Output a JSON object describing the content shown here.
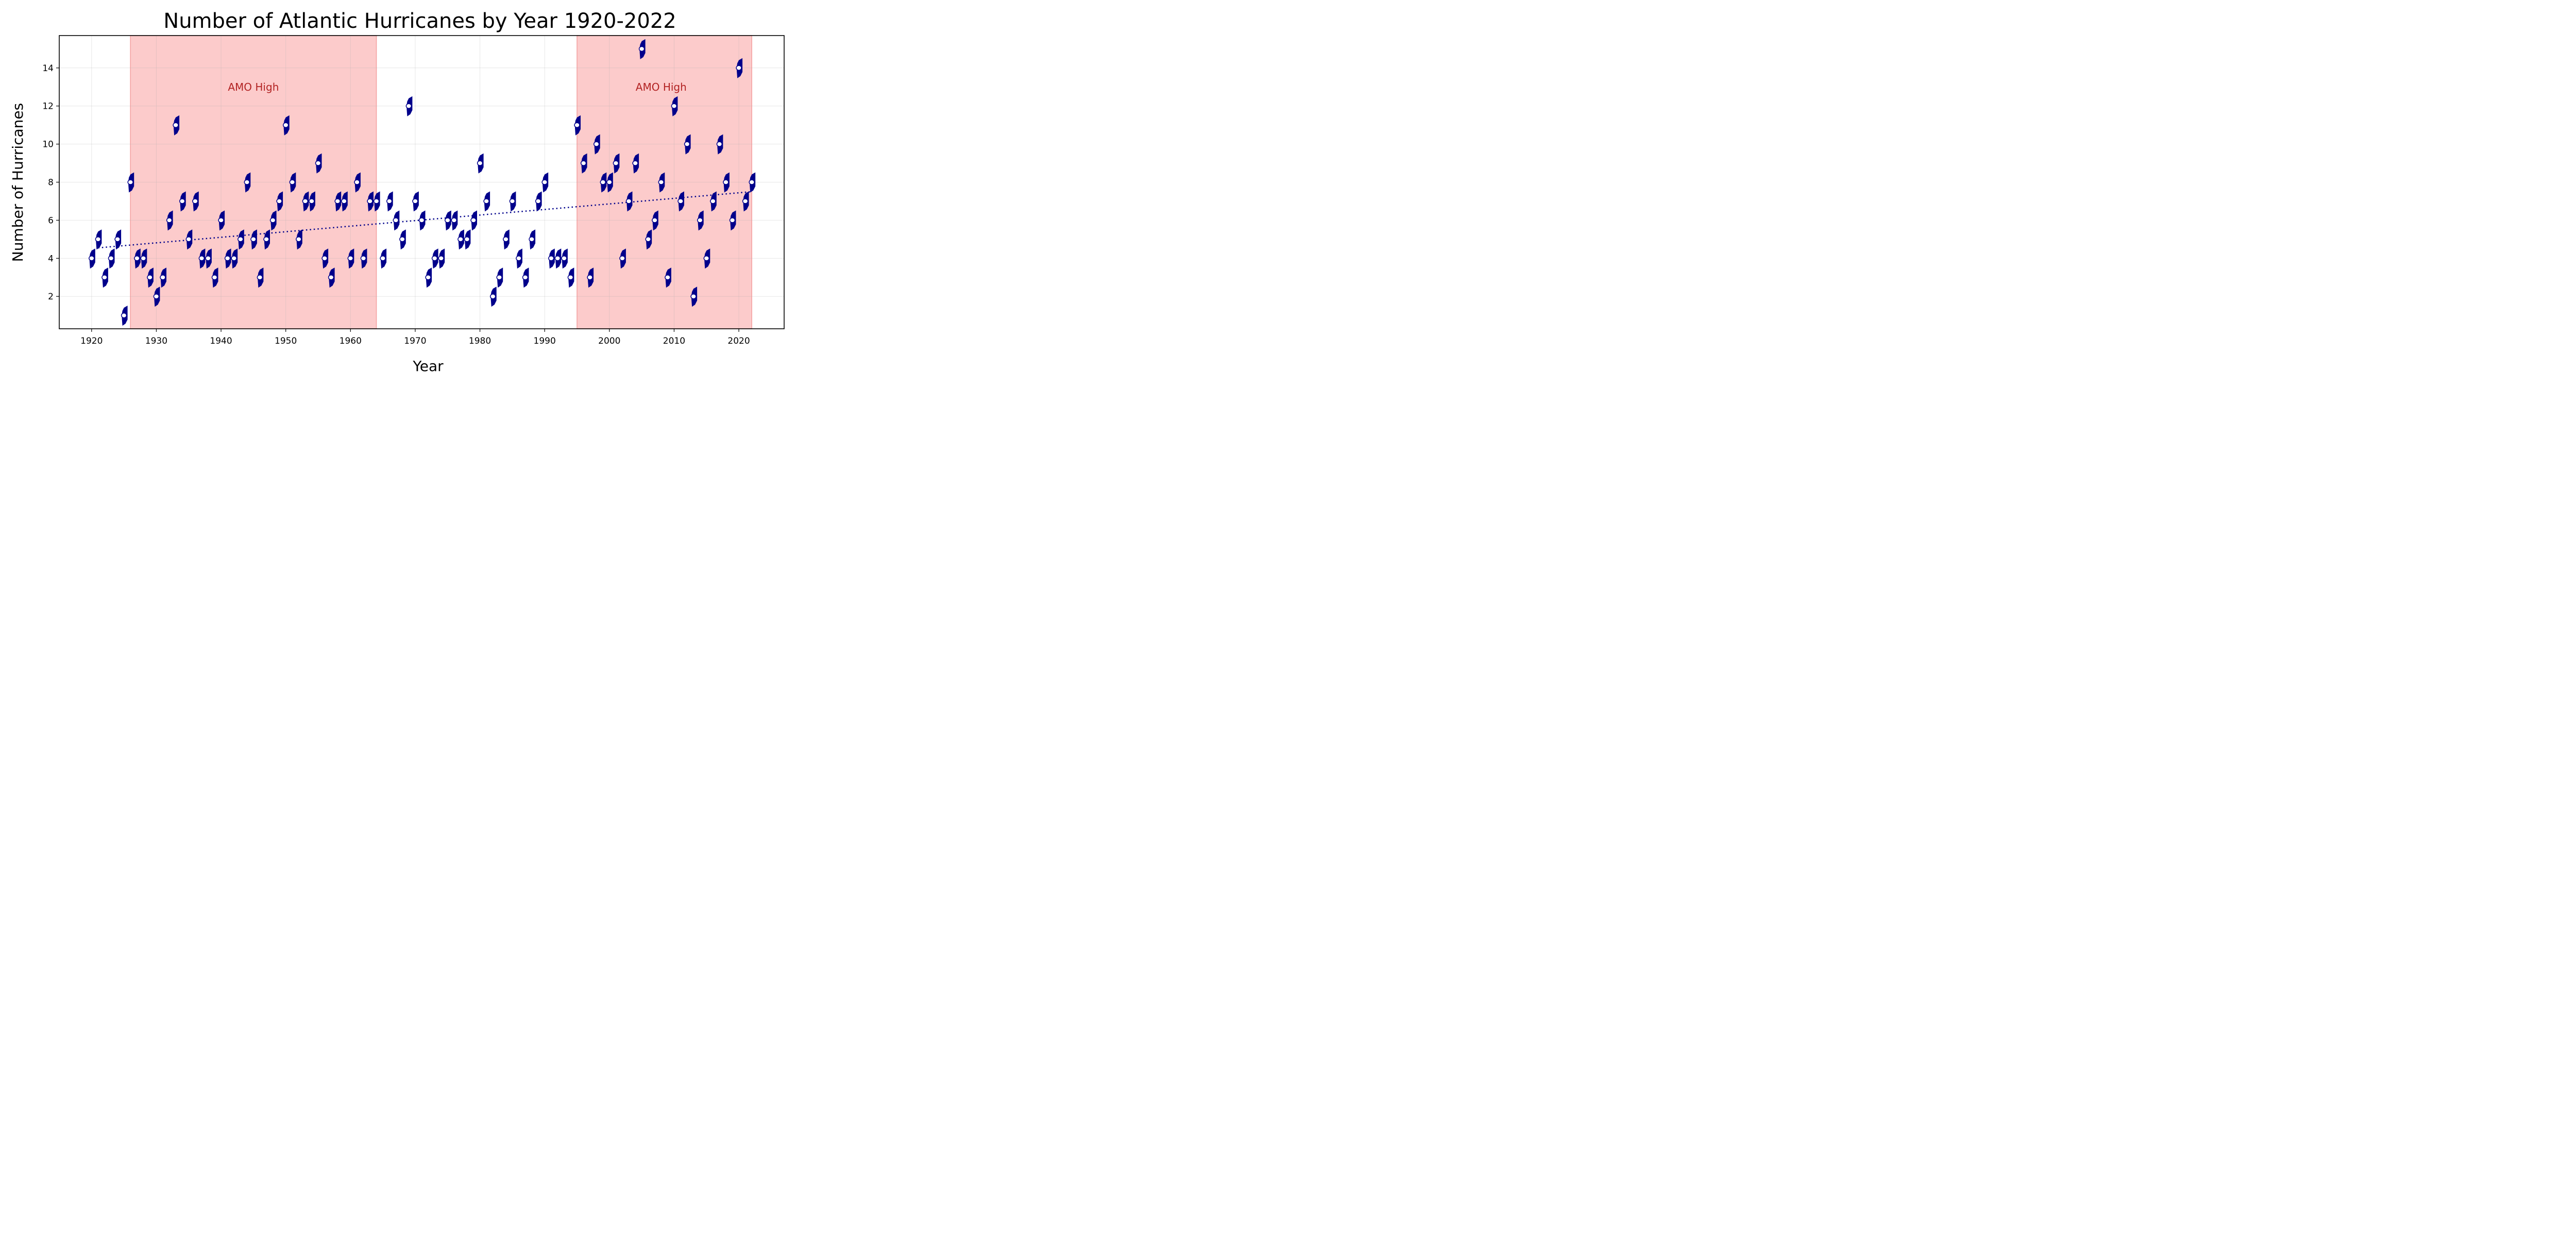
{
  "chart_data": {
    "type": "scatter",
    "title": "Number of Atlantic Hurricanes by Year 1920-2022",
    "xlabel": "Year",
    "ylabel": "Number of Hurricanes",
    "xlim": [
      1915,
      2027
    ],
    "ylim": [
      0.3,
      15.7
    ],
    "xticks": [
      1920,
      1930,
      1940,
      1950,
      1960,
      1970,
      1980,
      1990,
      2000,
      2010,
      2020
    ],
    "yticks": [
      2,
      4,
      6,
      8,
      10,
      12,
      14
    ],
    "grid": true,
    "marker": "hurricane-symbol",
    "marker_color": "#00008b",
    "marker_eye_color": "#ffffff",
    "series": [
      {
        "name": "Hurricanes",
        "x": [
          1920,
          1921,
          1922,
          1923,
          1924,
          1925,
          1926,
          1927,
          1928,
          1929,
          1930,
          1931,
          1932,
          1933,
          1934,
          1935,
          1936,
          1937,
          1938,
          1939,
          1940,
          1941,
          1942,
          1943,
          1944,
          1945,
          1946,
          1947,
          1948,
          1949,
          1950,
          1951,
          1952,
          1953,
          1954,
          1955,
          1956,
          1957,
          1958,
          1959,
          1960,
          1961,
          1962,
          1963,
          1964,
          1965,
          1966,
          1967,
          1968,
          1969,
          1970,
          1971,
          1972,
          1973,
          1974,
          1975,
          1976,
          1977,
          1978,
          1979,
          1980,
          1981,
          1982,
          1983,
          1984,
          1985,
          1986,
          1987,
          1988,
          1989,
          1990,
          1991,
          1992,
          1993,
          1994,
          1995,
          1996,
          1997,
          1998,
          1999,
          2000,
          2001,
          2002,
          2003,
          2004,
          2005,
          2006,
          2007,
          2008,
          2009,
          2010,
          2011,
          2012,
          2013,
          2014,
          2015,
          2016,
          2017,
          2018,
          2019,
          2020,
          2021,
          2022
        ],
        "y": [
          4,
          5,
          3,
          4,
          5,
          1,
          8,
          4,
          4,
          3,
          2,
          3,
          6,
          11,
          7,
          5,
          7,
          4,
          4,
          3,
          6,
          4,
          4,
          5,
          8,
          5,
          3,
          5,
          6,
          7,
          11,
          8,
          5,
          7,
          7,
          9,
          4,
          3,
          7,
          7,
          4,
          8,
          4,
          7,
          7,
          4,
          7,
          6,
          5,
          12,
          7,
          6,
          3,
          4,
          4,
          6,
          6,
          5,
          5,
          6,
          9,
          7,
          2,
          3,
          5,
          7,
          4,
          3,
          5,
          7,
          8,
          4,
          4,
          4,
          3,
          11,
          9,
          3,
          10,
          8,
          8,
          9,
          4,
          7,
          9,
          15,
          5,
          6,
          8,
          3,
          12,
          7,
          10,
          2,
          6,
          4,
          7,
          10,
          8,
          6,
          14,
          7,
          8
        ]
      }
    ],
    "trendline": {
      "style": "dotted",
      "color": "#00008b",
      "x": [
        1921,
        2022
      ],
      "y": [
        4.55,
        7.5
      ]
    },
    "shaded_regions": [
      {
        "x_start": 1926,
        "x_end": 1964,
        "label": "AMO High",
        "label_x": 1945,
        "label_y": 13,
        "fill": "#fccbcb",
        "edge": "#f4a0a0",
        "label_color": "#b22222"
      },
      {
        "x_start": 1995,
        "x_end": 2022,
        "label": "AMO High",
        "label_x": 2008,
        "label_y": 13,
        "fill": "#fccbcb",
        "edge": "#f4a0a0",
        "label_color": "#b22222"
      }
    ]
  }
}
